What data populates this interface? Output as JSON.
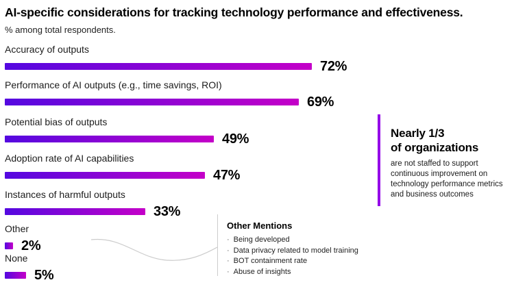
{
  "header": {
    "title": "AI-specific considerations for tracking technology performance and effectiveness.",
    "subtitle": "% among total respondents."
  },
  "chart_data": {
    "type": "bar",
    "orientation": "horizontal",
    "title": "AI-specific considerations for tracking technology performance and effectiveness.",
    "subtitle": "% among total respondents.",
    "categories": [
      "Accuracy of outputs",
      "Performance of AI outputs (e.g., time savings, ROI)",
      "Potential bias of outputs",
      "Adoption rate of AI capabilities",
      "Instances of harmful outputs",
      "Other",
      "None"
    ],
    "values": [
      72,
      69,
      49,
      47,
      33,
      2,
      5
    ],
    "display_values": [
      "72%",
      "69%",
      "49%",
      "47%",
      "33%",
      "2%",
      "5%"
    ],
    "value_suffix": "%",
    "xlim": [
      0,
      100
    ],
    "grid": false,
    "data_labels": "end-of-bar",
    "bar_gradient_start": "#5408E0",
    "bar_gradient_end": "#C400C8"
  },
  "callout": {
    "heading_line1": "Nearly 1/3",
    "heading_line2": "of organizations",
    "body": "are not staffed to support continuous improvement on technology performance metrics and business outcomes",
    "accent_color": "#9405E8"
  },
  "other_mentions": {
    "heading": "Other Mentions",
    "items": [
      "Being developed",
      "Data privacy related to model training",
      "BOT containment rate",
      "Abuse of insights"
    ],
    "bullet_char": "·",
    "line_color": "#CCCCCC"
  }
}
